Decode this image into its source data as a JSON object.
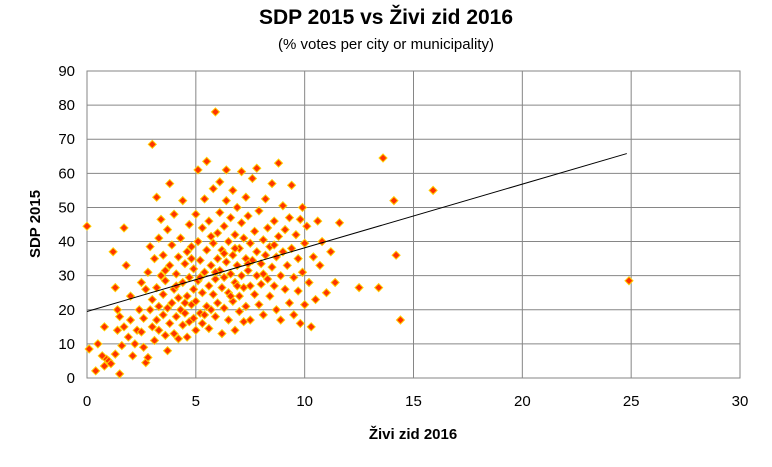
{
  "chart_data": {
    "type": "scatter",
    "title": "SDP 2015 vs Živi zid 2016",
    "subtitle": "(% votes per city or municipality)",
    "xlabel": "Živi zid 2016",
    "ylabel": "SDP 2015",
    "xlim": [
      0,
      30
    ],
    "ylim": [
      0,
      90
    ],
    "xticks": [
      "0",
      "5",
      "10",
      "15",
      "20",
      "25",
      "30"
    ],
    "yticks": [
      "0",
      "10",
      "20",
      "30",
      "40",
      "50",
      "60",
      "70",
      "80",
      "90"
    ],
    "grid": true,
    "marker_fill": "#ff3300",
    "marker_stroke": "#ffcc00",
    "trendline": {
      "x": [
        0,
        24.8
      ],
      "y": [
        19.5,
        65.8
      ],
      "color": "#000000"
    },
    "points": [
      [
        0.0,
        44.5
      ],
      [
        0.1,
        8.5
      ],
      [
        0.4,
        2.1
      ],
      [
        0.5,
        10.0
      ],
      [
        0.7,
        6.5
      ],
      [
        0.8,
        3.5
      ],
      [
        0.8,
        15.0
      ],
      [
        0.9,
        5.5
      ],
      [
        1.0,
        5.0
      ],
      [
        1.1,
        4.2
      ],
      [
        1.2,
        37.0
      ],
      [
        1.3,
        7.0
      ],
      [
        1.3,
        26.5
      ],
      [
        1.4,
        14.0
      ],
      [
        1.4,
        20.0
      ],
      [
        1.5,
        1.2
      ],
      [
        1.5,
        18.0
      ],
      [
        1.6,
        9.5
      ],
      [
        1.7,
        15.0
      ],
      [
        1.7,
        44.0
      ],
      [
        1.8,
        33.0
      ],
      [
        1.9,
        12.0
      ],
      [
        2.0,
        17.0
      ],
      [
        2.0,
        24.0
      ],
      [
        2.1,
        6.5
      ],
      [
        2.2,
        10.0
      ],
      [
        2.3,
        14.0
      ],
      [
        2.4,
        20.0
      ],
      [
        2.5,
        13.5
      ],
      [
        2.5,
        28.0
      ],
      [
        2.6,
        9.0
      ],
      [
        2.6,
        17.5
      ],
      [
        2.7,
        4.5
      ],
      [
        2.7,
        26.0
      ],
      [
        2.8,
        6.0
      ],
      [
        2.8,
        31.0
      ],
      [
        2.9,
        20.0
      ],
      [
        2.9,
        38.5
      ],
      [
        3.0,
        15.0
      ],
      [
        3.0,
        23.0
      ],
      [
        3.0,
        68.5
      ],
      [
        3.1,
        11.0
      ],
      [
        3.1,
        35.0
      ],
      [
        3.2,
        17.0
      ],
      [
        3.2,
        26.5
      ],
      [
        3.2,
        53.0
      ],
      [
        3.3,
        14.0
      ],
      [
        3.3,
        21.0
      ],
      [
        3.3,
        41.0
      ],
      [
        3.4,
        30.0
      ],
      [
        3.4,
        46.5
      ],
      [
        3.5,
        18.5
      ],
      [
        3.5,
        24.5
      ],
      [
        3.5,
        36.0
      ],
      [
        3.6,
        12.5
      ],
      [
        3.6,
        28.5
      ],
      [
        3.7,
        8.0
      ],
      [
        3.7,
        20.5
      ],
      [
        3.7,
        43.5
      ],
      [
        3.8,
        16.0
      ],
      [
        3.8,
        33.0
      ],
      [
        3.8,
        57.0
      ],
      [
        3.9,
        22.0
      ],
      [
        3.9,
        39.0
      ],
      [
        4.0,
        13.0
      ],
      [
        4.0,
        26.0
      ],
      [
        4.0,
        48.0
      ],
      [
        4.1,
        18.0
      ],
      [
        4.1,
        30.5
      ],
      [
        4.2,
        11.5
      ],
      [
        4.2,
        23.5
      ],
      [
        4.2,
        35.5
      ],
      [
        4.3,
        20.0
      ],
      [
        4.3,
        41.0
      ],
      [
        4.4,
        15.5
      ],
      [
        4.4,
        28.0
      ],
      [
        4.4,
        52.0
      ],
      [
        4.5,
        19.0
      ],
      [
        4.5,
        33.5
      ],
      [
        4.6,
        24.0
      ],
      [
        4.6,
        37.0
      ],
      [
        4.6,
        12.0
      ],
      [
        4.7,
        16.5
      ],
      [
        4.7,
        29.5
      ],
      [
        4.7,
        45.0
      ],
      [
        4.8,
        21.5
      ],
      [
        4.8,
        38.5
      ],
      [
        4.9,
        26.0
      ],
      [
        4.9,
        17.5
      ],
      [
        4.9,
        32.0
      ],
      [
        5.0,
        22.5
      ],
      [
        5.0,
        48.0
      ],
      [
        5.0,
        14.0
      ],
      [
        5.1,
        28.5
      ],
      [
        5.1,
        40.0
      ],
      [
        5.1,
        61.0
      ],
      [
        5.2,
        19.0
      ],
      [
        5.2,
        34.5
      ],
      [
        5.3,
        25.0
      ],
      [
        5.3,
        44.0
      ],
      [
        5.3,
        16.0
      ],
      [
        5.4,
        31.0
      ],
      [
        5.4,
        52.5
      ],
      [
        5.5,
        21.0
      ],
      [
        5.5,
        37.5
      ],
      [
        5.5,
        63.5
      ],
      [
        5.6,
        27.0
      ],
      [
        5.6,
        14.5
      ],
      [
        5.6,
        46.0
      ],
      [
        5.7,
        33.0
      ],
      [
        5.7,
        20.0
      ],
      [
        5.8,
        39.5
      ],
      [
        5.8,
        24.5
      ],
      [
        5.8,
        55.5
      ],
      [
        5.9,
        29.0
      ],
      [
        5.9,
        18.0
      ],
      [
        5.9,
        78.0
      ],
      [
        6.0,
        35.0
      ],
      [
        6.0,
        42.5
      ],
      [
        6.0,
        22.0
      ],
      [
        6.1,
        31.5
      ],
      [
        6.1,
        48.5
      ],
      [
        6.1,
        57.5
      ],
      [
        6.2,
        26.5
      ],
      [
        6.2,
        37.5
      ],
      [
        6.2,
        13.0
      ],
      [
        6.3,
        29.5
      ],
      [
        6.3,
        44.5
      ],
      [
        6.3,
        20.5
      ],
      [
        6.4,
        34.0
      ],
      [
        6.4,
        52.0
      ],
      [
        6.4,
        61.0
      ],
      [
        6.5,
        25.0
      ],
      [
        6.5,
        40.0
      ],
      [
        6.5,
        17.0
      ],
      [
        6.6,
        30.5
      ],
      [
        6.6,
        47.0
      ],
      [
        6.7,
        22.5
      ],
      [
        6.7,
        36.0
      ],
      [
        6.7,
        55.0
      ],
      [
        6.8,
        28.0
      ],
      [
        6.8,
        42.0
      ],
      [
        6.8,
        14.0
      ],
      [
        6.9,
        33.0
      ],
      [
        6.9,
        50.0
      ],
      [
        7.0,
        24.0
      ],
      [
        7.0,
        38.0
      ],
      [
        7.0,
        19.5
      ],
      [
        7.1,
        30.0
      ],
      [
        7.1,
        45.5
      ],
      [
        7.1,
        60.5
      ],
      [
        7.2,
        26.5
      ],
      [
        7.2,
        41.0
      ],
      [
        7.3,
        35.0
      ],
      [
        7.3,
        21.0
      ],
      [
        7.3,
        53.0
      ],
      [
        7.4,
        31.5
      ],
      [
        7.4,
        47.5
      ],
      [
        7.5,
        27.0
      ],
      [
        7.5,
        39.5
      ],
      [
        7.5,
        17.0
      ],
      [
        7.6,
        34.5
      ],
      [
        7.6,
        58.5
      ],
      [
        7.7,
        24.5
      ],
      [
        7.7,
        43.0
      ],
      [
        7.8,
        30.0
      ],
      [
        7.8,
        37.0
      ],
      [
        7.8,
        61.5
      ],
      [
        7.9,
        21.5
      ],
      [
        7.9,
        49.0
      ],
      [
        8.0,
        33.5
      ],
      [
        8.0,
        27.5
      ],
      [
        8.1,
        40.5
      ],
      [
        8.1,
        18.5
      ],
      [
        8.2,
        36.0
      ],
      [
        8.2,
        52.5
      ],
      [
        8.3,
        29.0
      ],
      [
        8.3,
        44.0
      ],
      [
        8.4,
        24.0
      ],
      [
        8.4,
        38.5
      ],
      [
        8.5,
        32.5
      ],
      [
        8.5,
        57.0
      ],
      [
        8.6,
        27.0
      ],
      [
        8.6,
        46.0
      ],
      [
        8.7,
        20.0
      ],
      [
        8.7,
        35.5
      ],
      [
        8.8,
        41.5
      ],
      [
        8.8,
        63.0
      ],
      [
        8.9,
        30.0
      ],
      [
        8.9,
        17.0
      ],
      [
        9.0,
        37.0
      ],
      [
        9.0,
        50.5
      ],
      [
        9.1,
        26.0
      ],
      [
        9.1,
        43.5
      ],
      [
        9.2,
        33.0
      ],
      [
        9.3,
        22.0
      ],
      [
        9.3,
        47.0
      ],
      [
        9.4,
        38.0
      ],
      [
        9.4,
        56.5
      ],
      [
        9.5,
        29.5
      ],
      [
        9.5,
        18.5
      ],
      [
        9.6,
        42.0
      ],
      [
        9.7,
        35.0
      ],
      [
        9.7,
        25.5
      ],
      [
        9.8,
        46.5
      ],
      [
        9.8,
        16.0
      ],
      [
        9.9,
        31.0
      ],
      [
        9.9,
        50.0
      ],
      [
        10.0,
        39.5
      ],
      [
        10.0,
        21.5
      ],
      [
        10.1,
        44.5
      ],
      [
        10.2,
        28.0
      ],
      [
        10.3,
        15.0
      ],
      [
        10.4,
        35.5
      ],
      [
        10.5,
        23.0
      ],
      [
        10.6,
        46.0
      ],
      [
        10.7,
        33.0
      ],
      [
        10.8,
        40.0
      ],
      [
        11.0,
        25.0
      ],
      [
        11.2,
        37.0
      ],
      [
        11.4,
        28.0
      ],
      [
        11.6,
        45.5
      ],
      [
        12.5,
        26.5
      ],
      [
        13.4,
        26.5
      ],
      [
        13.6,
        64.5
      ],
      [
        14.1,
        52.0
      ],
      [
        14.2,
        36.0
      ],
      [
        14.4,
        17.0
      ],
      [
        15.9,
        55.0
      ],
      [
        24.9,
        28.5
      ],
      [
        3.6,
        31.5
      ],
      [
        4.1,
        27.0
      ],
      [
        4.8,
        35.0
      ],
      [
        5.2,
        29.5
      ],
      [
        5.7,
        41.5
      ],
      [
        6.3,
        36.5
      ],
      [
        6.9,
        27.0
      ],
      [
        7.4,
        33.5
      ],
      [
        8.1,
        30.5
      ],
      [
        8.6,
        39.0
      ],
      [
        4.5,
        22.0
      ],
      [
        5.4,
        18.5
      ],
      [
        6.6,
        24.0
      ],
      [
        7.2,
        16.5
      ],
      [
        5.9,
        31.0
      ],
      [
        6.8,
        38.0
      ]
    ]
  }
}
